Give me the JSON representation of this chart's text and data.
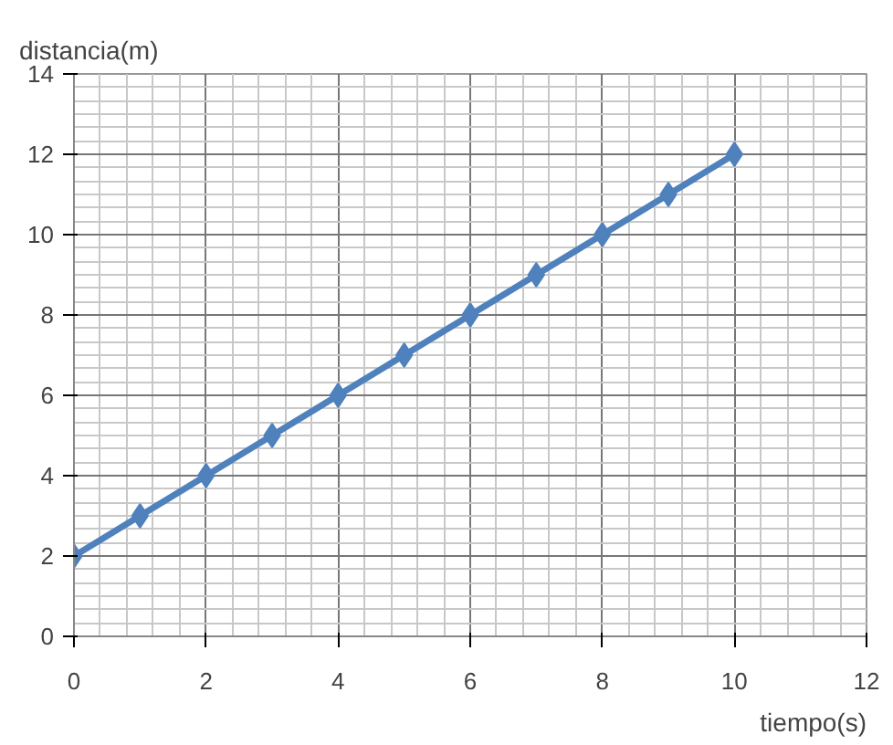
{
  "chart_data": {
    "type": "line",
    "xlabel": "tiempo(s)",
    "ylabel": "distancia(m)",
    "x": [
      0,
      1,
      2,
      3,
      4,
      5,
      6,
      7,
      8,
      9,
      10
    ],
    "series": [
      {
        "color": "#4f81bd",
        "values": [
          2,
          3,
          4,
          5,
          6,
          7,
          8,
          9,
          10,
          11,
          12
        ]
      }
    ],
    "xlim": [
      0,
      12
    ],
    "ylim": [
      0,
      14
    ],
    "xticks": [
      0,
      2,
      4,
      6,
      8,
      10,
      12
    ],
    "yticks": [
      0,
      2,
      4,
      6,
      8,
      10,
      12,
      14
    ],
    "grid": true,
    "marker": "diamond",
    "line_style": "solid"
  }
}
